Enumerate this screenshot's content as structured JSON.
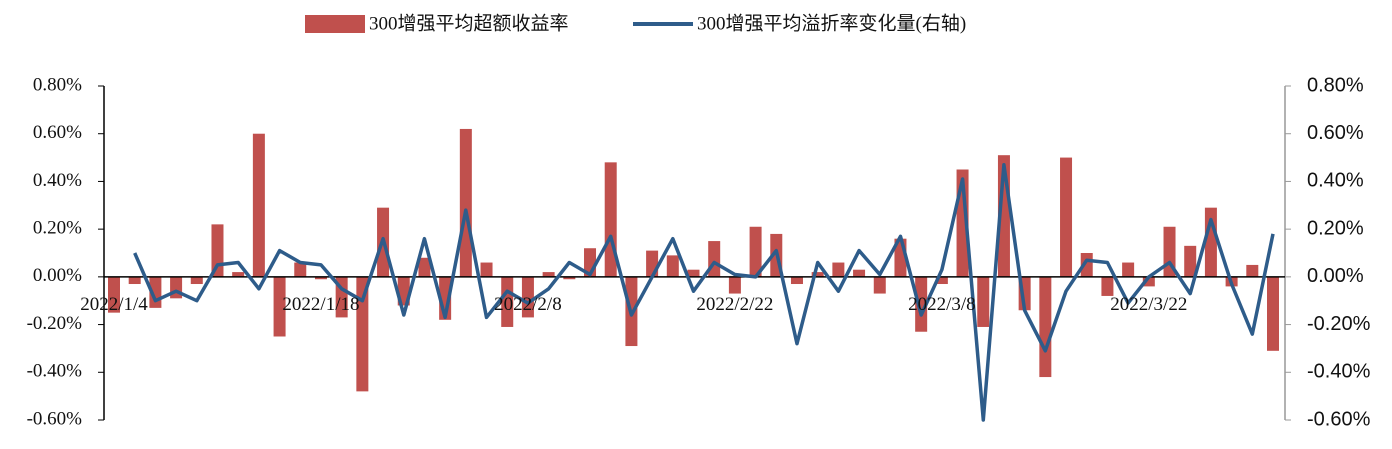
{
  "chart_data": {
    "type": "bar-line",
    "categories": [
      "2022/1/4",
      null,
      null,
      null,
      null,
      null,
      null,
      null,
      null,
      null,
      "2022/1/18",
      null,
      null,
      null,
      null,
      null,
      null,
      null,
      null,
      null,
      "2022/2/8",
      null,
      null,
      null,
      null,
      null,
      null,
      null,
      null,
      null,
      "2022/2/22",
      null,
      null,
      null,
      null,
      null,
      null,
      null,
      null,
      null,
      "2022/3/8",
      null,
      null,
      null,
      null,
      null,
      null,
      null,
      null,
      null,
      "2022/3/22",
      null,
      null,
      null,
      null,
      null,
      null
    ],
    "series": [
      {
        "name": "300增强平均超额收益率",
        "type": "bar",
        "color": "#c0504d",
        "values": [
          -0.15,
          -0.03,
          -0.13,
          -0.09,
          -0.03,
          0.22,
          0.02,
          0.6,
          -0.25,
          0.06,
          -0.01,
          -0.17,
          -0.48,
          0.29,
          -0.12,
          0.08,
          -0.18,
          0.62,
          0.06,
          -0.21,
          -0.17,
          0.02,
          -0.01,
          0.12,
          0.48,
          -0.29,
          0.11,
          0.09,
          0.03,
          0.15,
          -0.07,
          0.21,
          0.18,
          -0.03,
          0.02,
          0.06,
          0.03,
          -0.07,
          0.16,
          -0.23,
          -0.03,
          0.45,
          -0.21,
          0.51,
          -0.14,
          -0.42,
          0.5,
          0.1,
          -0.08,
          0.06,
          -0.04,
          0.21,
          0.13,
          0.29,
          -0.04,
          0.05,
          -0.31
        ]
      },
      {
        "name": "300增强平均溢折率变化量(右轴)",
        "type": "line",
        "axis": "y2",
        "color": "#2e5c8a",
        "values": [
          null,
          0.1,
          -0.1,
          -0.06,
          -0.1,
          0.05,
          0.06,
          -0.05,
          0.11,
          0.06,
          0.05,
          -0.05,
          -0.1,
          0.16,
          -0.16,
          0.16,
          -0.17,
          0.28,
          -0.17,
          -0.06,
          -0.11,
          -0.05,
          0.06,
          0.01,
          0.17,
          -0.16,
          0.0,
          0.16,
          -0.06,
          0.06,
          0.01,
          0.0,
          0.11,
          -0.28,
          0.06,
          -0.06,
          0.11,
          0.01,
          0.17,
          -0.16,
          0.03,
          0.41,
          -0.6,
          0.47,
          -0.14,
          -0.31,
          -0.06,
          0.07,
          0.06,
          -0.11,
          0.0,
          0.06,
          -0.07,
          0.24,
          -0.03,
          -0.24,
          0.18
        ]
      }
    ],
    "ylim": [
      -0.6,
      0.8
    ],
    "yticks": [
      {
        "value": -0.6,
        "label": "-0.60%"
      },
      {
        "value": -0.4,
        "label": "-0.40%"
      },
      {
        "value": -0.2,
        "label": "-0.20%"
      },
      {
        "value": 0,
        "label": "0.00%"
      },
      {
        "value": 0.2,
        "label": "0.20%"
      },
      {
        "value": 0.4,
        "label": "0.40%"
      },
      {
        "value": 0.6,
        "label": "0.60%"
      },
      {
        "value": 0.8,
        "label": "0.80%"
      }
    ],
    "y2lim": [
      -0.6,
      0.8
    ],
    "y2ticks": [
      {
        "value": -0.6,
        "label": "-0.60%"
      },
      {
        "value": -0.4,
        "label": "-0.40%"
      },
      {
        "value": -0.2,
        "label": "-0.20%"
      },
      {
        "value": 0,
        "label": "0.00%"
      },
      {
        "value": 0.2,
        "label": "0.20%"
      },
      {
        "value": 0.4,
        "label": "0.40%"
      },
      {
        "value": 0.6,
        "label": "0.60%"
      },
      {
        "value": 0.8,
        "label": "0.80%"
      }
    ],
    "legend": "top"
  }
}
